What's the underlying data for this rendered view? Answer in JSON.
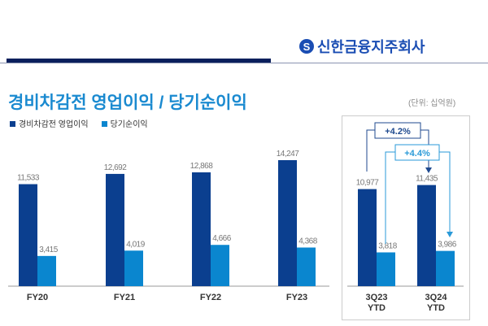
{
  "header": {
    "company": "신한금융지주회사",
    "logo_icon": "shinhan-s-logo"
  },
  "title": "경비차감전 영업이익 / 당기순이익",
  "unit": "(단위: 십억원)",
  "chart_data": {
    "type": "bar",
    "categories": [
      "FY20",
      "FY21",
      "FY22",
      "FY23",
      "3Q23\nYTD",
      "3Q24\nYTD"
    ],
    "series": [
      {
        "name": "경비차감전 영업이익",
        "color": "#0b3f8f",
        "values": [
          11533,
          12692,
          12868,
          14247,
          10977,
          11435
        ],
        "labels": [
          "11,533",
          "12,692",
          "12,868",
          "14,247",
          "10,977",
          "11,435"
        ]
      },
      {
        "name": "당기순이익",
        "color": "#0a86cf",
        "values": [
          3415,
          4019,
          4666,
          4368,
          3818,
          3986
        ],
        "labels": [
          "3,415",
          "4,019",
          "4,666",
          "4,368",
          "3,818",
          "3,986"
        ]
      }
    ],
    "annotations": [
      {
        "text": "+4.2%",
        "series": "경비차감전 영업이익",
        "from": "3Q23 YTD",
        "to": "3Q24 YTD"
      },
      {
        "text": "+4.4%",
        "series": "당기순이익",
        "from": "3Q23 YTD",
        "to": "3Q24 YTD"
      }
    ],
    "ylim": [
      0,
      15000
    ],
    "grid": false,
    "legend": "top-left"
  }
}
